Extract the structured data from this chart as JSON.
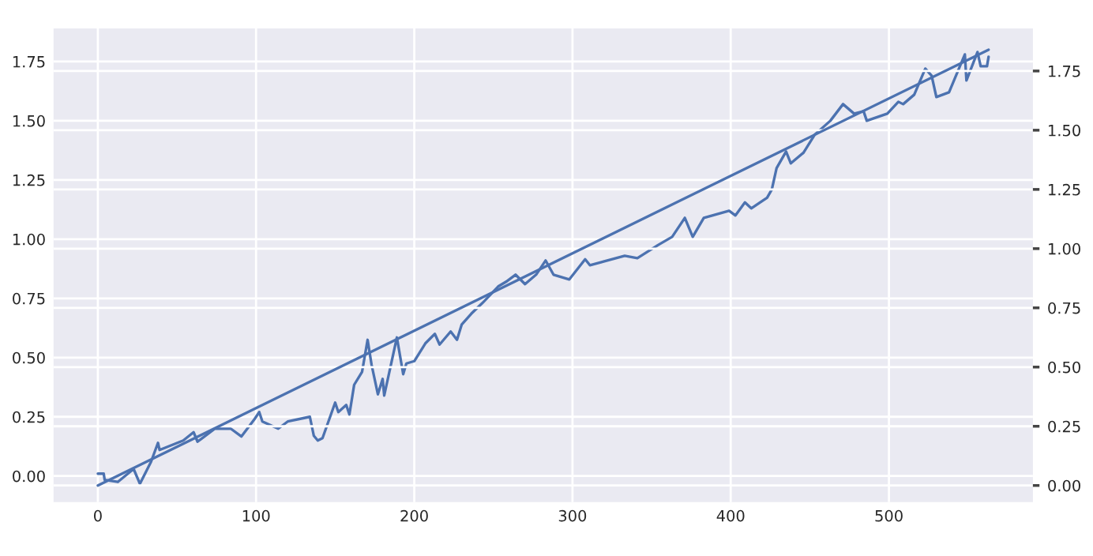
{
  "chart_data": {
    "type": "line",
    "grid": true,
    "legend": false,
    "marker": "none",
    "line_style": "solid",
    "xlim": [
      -28,
      591
    ],
    "xticks": [
      0,
      100,
      200,
      300,
      400,
      500
    ],
    "ylim": [
      -0.11,
      1.89
    ],
    "yticks": [
      {
        "value": 0,
        "label": "0.00"
      },
      {
        "value": 0.25,
        "label": "0.25"
      },
      {
        "value": 0.5,
        "label": "0.50"
      },
      {
        "value": 0.75,
        "label": "0.75"
      },
      {
        "value": 1,
        "label": "1.00"
      },
      {
        "value": 1.25,
        "label": "1.25"
      },
      {
        "value": 1.5,
        "label": "1.50"
      },
      {
        "value": 1.75,
        "label": "1.75"
      }
    ],
    "y2lim": [
      -0.07,
      1.93
    ],
    "y2ticks": [
      {
        "value": 0,
        "label": "0.00"
      },
      {
        "value": 0.25,
        "label": "0.25"
      },
      {
        "value": 0.5,
        "label": "0.50"
      },
      {
        "value": 0.75,
        "label": "0.75"
      },
      {
        "value": 1,
        "label": "1.00"
      },
      {
        "value": 1.25,
        "label": "1.25"
      },
      {
        "value": 1.5,
        "label": "1.50"
      },
      {
        "value": 1.75,
        "label": "1.75"
      }
    ],
    "series": [
      {
        "color": "#4c72b0",
        "x": [
          0,
          3.7,
          4.3,
          12.6,
          22.6,
          26.6,
          33.6,
          38,
          39,
          54,
          60.5,
          63,
          74,
          84,
          90.7,
          99,
          102,
          104,
          114,
          120,
          134,
          136.5,
          139,
          142,
          150,
          152,
          157,
          159,
          162,
          167,
          170.5,
          173,
          177,
          180,
          181,
          189,
          193,
          195,
          200,
          207,
          213,
          216,
          223,
          227,
          230,
          236,
          243,
          253,
          258,
          264,
          270,
          277,
          283,
          288,
          298,
          308,
          311,
          333,
          341,
          354,
          363,
          371,
          376,
          383,
          399,
          403,
          409,
          413,
          423,
          426,
          429,
          435,
          438,
          446,
          453,
          463,
          471,
          478,
          484,
          486,
          499,
          506,
          509,
          516,
          523,
          527,
          530,
          538,
          548,
          549,
          556,
          558,
          562,
          563
        ],
        "values": [
          0.01,
          0.01,
          -0.016,
          -0.025,
          0.03,
          -0.033,
          0.06,
          0.14,
          0.11,
          0.15,
          0.185,
          0.145,
          0.2,
          0.2,
          0.167,
          0.24,
          0.27,
          0.23,
          0.2,
          0.23,
          0.25,
          0.17,
          0.15,
          0.16,
          0.31,
          0.27,
          0.3,
          0.26,
          0.385,
          0.44,
          0.575,
          0.47,
          0.345,
          0.41,
          0.34,
          0.585,
          0.43,
          0.475,
          0.485,
          0.56,
          0.6,
          0.555,
          0.61,
          0.575,
          0.64,
          0.685,
          0.73,
          0.8,
          0.82,
          0.85,
          0.81,
          0.85,
          0.91,
          0.85,
          0.83,
          0.915,
          0.89,
          0.93,
          0.92,
          0.975,
          1.01,
          1.09,
          1.01,
          1.09,
          1.12,
          1.1,
          1.155,
          1.13,
          1.175,
          1.21,
          1.3,
          1.37,
          1.32,
          1.365,
          1.44,
          1.5,
          1.57,
          1.53,
          1.54,
          1.5,
          1.53,
          1.58,
          1.57,
          1.61,
          1.72,
          1.69,
          1.6,
          1.62,
          1.78,
          1.67,
          1.79,
          1.73,
          1.73,
          1.77
        ]
      },
      {
        "color": "#4c72b0",
        "axis": "y2",
        "x": [
          0,
          563
        ],
        "values": [
          0,
          1.84
        ]
      }
    ]
  }
}
